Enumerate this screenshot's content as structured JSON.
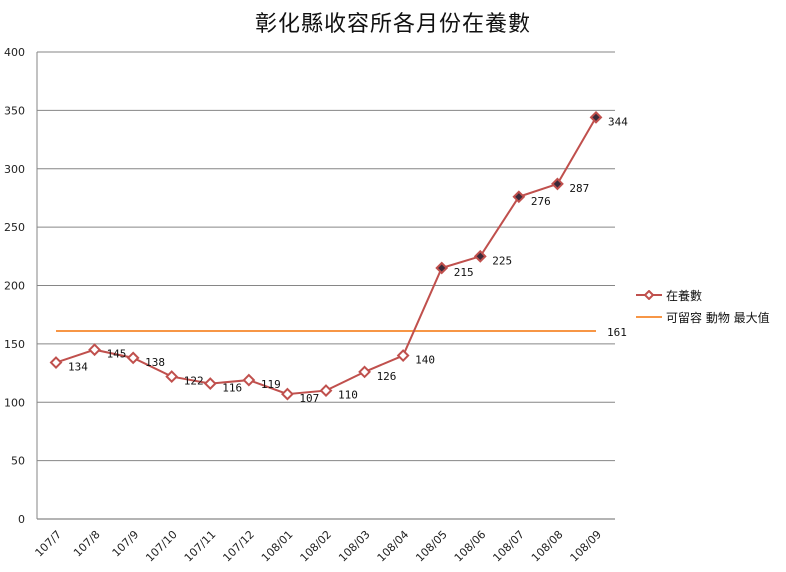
{
  "chart_data": {
    "type": "line",
    "title": "彰化縣收容所各月份在養數",
    "xlabel": "",
    "ylabel": "",
    "ylim": [
      0,
      400
    ],
    "yticks": [
      0,
      50,
      100,
      150,
      200,
      250,
      300,
      350,
      400
    ],
    "grid": true,
    "legend_position": "right",
    "categories": [
      "107/7",
      "107/8",
      "107/9",
      "107/10",
      "107/11",
      "107/12",
      "108/01",
      "108/02",
      "108/03",
      "108/04",
      "108/05",
      "108/06",
      "108/07",
      "108/08",
      "108/09"
    ],
    "series": [
      {
        "name": "在養數",
        "color": "#c0504d",
        "marker": "diamond",
        "values": [
          134,
          145,
          138,
          122,
          116,
          119,
          107,
          110,
          126,
          140,
          215,
          225,
          276,
          287,
          344
        ]
      },
      {
        "name": "可留容 動物 最大值",
        "color": "#f79646",
        "marker": "none",
        "values": [
          161,
          161,
          161,
          161,
          161,
          161,
          161,
          161,
          161,
          161,
          161,
          161,
          161,
          161,
          161
        ],
        "end_label": "161"
      }
    ]
  },
  "legend": {
    "items": [
      {
        "label": "在養數",
        "color": "#c0504d"
      },
      {
        "label": "可留容 動物 最大值",
        "color": "#f79646"
      }
    ]
  },
  "colors": {
    "gridline": "#868686",
    "axis": "#868686"
  }
}
